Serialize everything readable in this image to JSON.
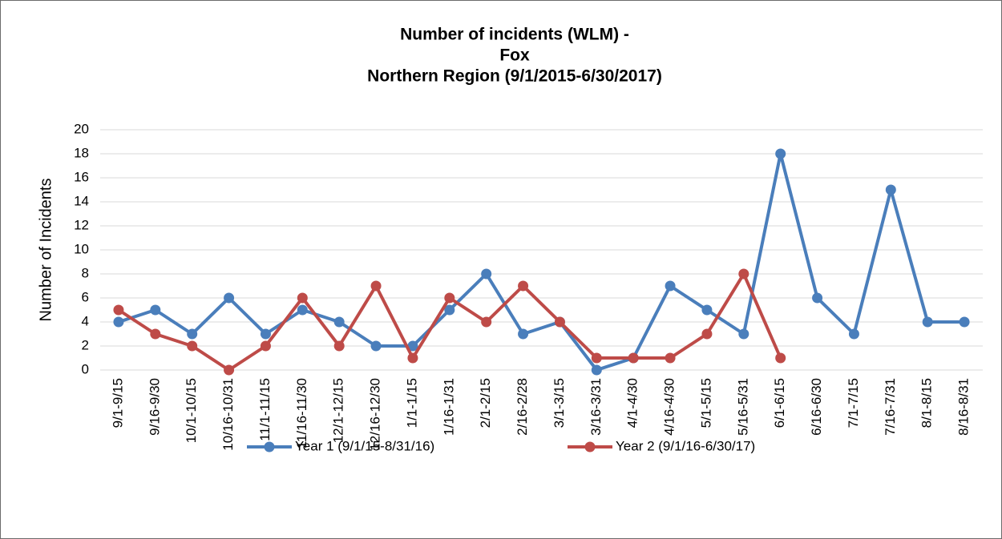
{
  "chart_data": {
    "type": "line",
    "title": [
      "Number of incidents (WLM) -",
      "Fox",
      "Northern Region (9/1/2015-6/30/2017)"
    ],
    "ylabel": "Number of Incidents",
    "categories": [
      "9/1-9/15",
      "9/16-9/30",
      "10/1-10/15",
      "10/16-10/31",
      "11/1-11/15",
      "11/16-11/30",
      "12/1-12/15",
      "12/16-12/30",
      "1/1-1/15",
      "1/16-1/31",
      "2/1-2/15",
      "2/16-2/28",
      "3/1-3/15",
      "3/16-3/31",
      "4/1-4/30",
      "4/16-4/30",
      "5/1-5/15",
      "5/16-5/31",
      "6/1-6/15",
      "6/16-6/30",
      "7/1-7/15",
      "7/16-7/31",
      "8/1-8/15",
      "8/16-8/31"
    ],
    "series": [
      {
        "name": "Year 1 (9/1/15-8/31/16)",
        "color": "#4a7ebb",
        "values": [
          4,
          5,
          3,
          6,
          3,
          5,
          4,
          2,
          2,
          5,
          8,
          3,
          4,
          0,
          1,
          7,
          5,
          3,
          18,
          6,
          3,
          15,
          4,
          4
        ]
      },
      {
        "name": "Year 2 (9/1/16-6/30/17)",
        "color": "#be4b48",
        "values": [
          5,
          3,
          2,
          0,
          2,
          6,
          2,
          7,
          1,
          6,
          4,
          7,
          4,
          1,
          1,
          1,
          3,
          8,
          1,
          null,
          null,
          null,
          null,
          null
        ]
      }
    ],
    "ylim": [
      0,
      20
    ],
    "yticks": [
      0,
      2,
      4,
      6,
      8,
      10,
      12,
      14,
      16,
      18,
      20
    ],
    "grid": true,
    "legend": "bottom"
  }
}
